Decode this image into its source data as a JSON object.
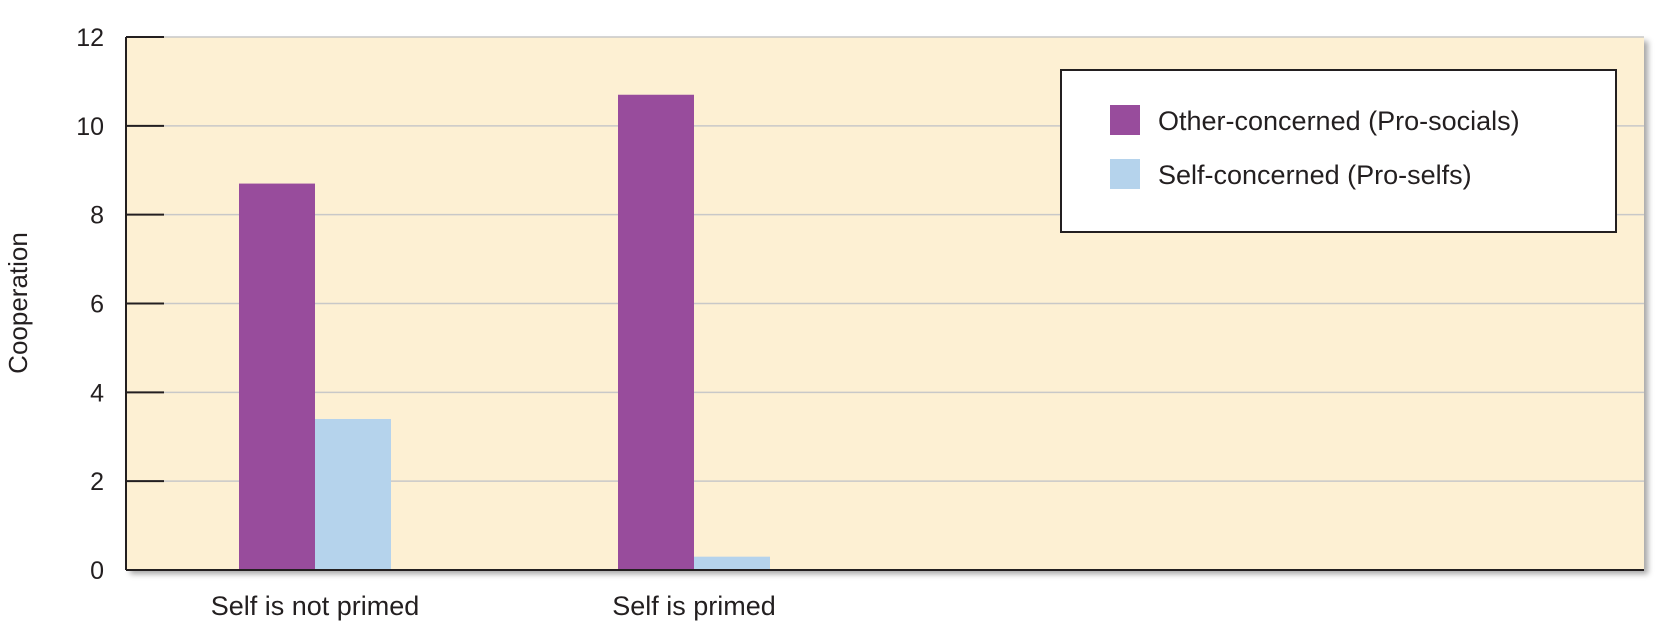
{
  "chart_data": {
    "type": "bar",
    "title": "",
    "xlabel": "",
    "ylabel": "Cooperation",
    "ylim": [
      0,
      12
    ],
    "yticks": [
      "0",
      "2",
      "4",
      "6",
      "8",
      "10",
      "12"
    ],
    "categories": [
      "Self is not primed",
      "Self is primed"
    ],
    "series": [
      {
        "name": "Other-concerned (Pro-socials)",
        "values": [
          8.7,
          10.7
        ],
        "color": "#984c9c"
      },
      {
        "name": "Self-concerned (Pro-selfs)",
        "values": [
          3.4,
          0.3
        ],
        "color": "#b5d3ec"
      }
    ],
    "grid": true,
    "legend_position": "top-right",
    "plot_background": "#fdf0d3",
    "gridline_color": "#c8c8c8"
  }
}
